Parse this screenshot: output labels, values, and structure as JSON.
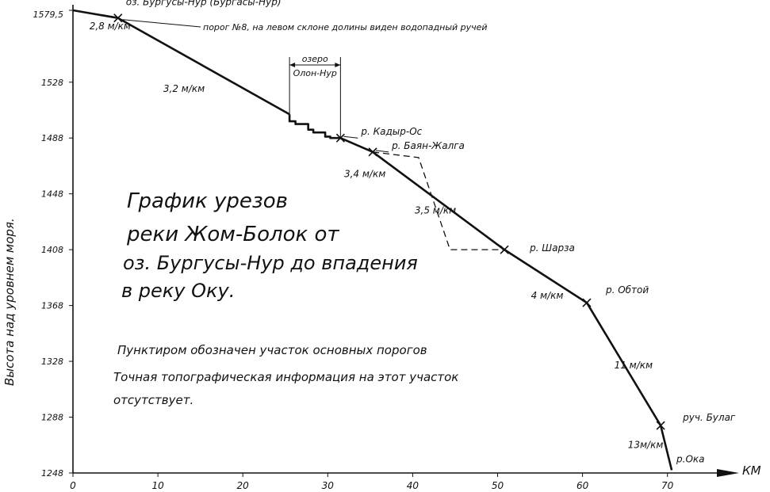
{
  "chart_data": {
    "type": "line",
    "title_lines": [
      "График урезов",
      "реки Жом-Болок от",
      "оз. Бургусы-Нур до впадения",
      "в реку Оку."
    ],
    "note_lines": [
      "Пунктиром обозначен участок основных порогов",
      "Точная топографическая информация на этот участок",
      "отсутствует."
    ],
    "xlabel": "КМ",
    "ylabel": "Высота над уровнем моря.",
    "xlim": [
      0,
      75
    ],
    "ylim": [
      1248,
      1579.5
    ],
    "x_ticks": [
      0,
      10,
      20,
      30,
      40,
      50,
      60,
      70
    ],
    "y_ticks": [
      {
        "value": 1579.5,
        "label": "1579,5"
      },
      {
        "value": 1528,
        "label": "1528"
      },
      {
        "value": 1488,
        "label": "1488"
      },
      {
        "value": 1448,
        "label": "1448"
      },
      {
        "value": 1408,
        "label": "1408"
      },
      {
        "value": 1368,
        "label": "1368"
      },
      {
        "value": 1328,
        "label": "1328"
      },
      {
        "value": 1288,
        "label": "1288"
      },
      {
        "value": 1248,
        "label": "1248"
      }
    ],
    "profile": [
      {
        "x": 0,
        "y": 1579.5
      },
      {
        "x": 5.3,
        "y": 1574
      },
      {
        "x": 25.5,
        "y": 1505
      },
      {
        "x": 31.5,
        "y": 1488
      },
      {
        "x": 35.3,
        "y": 1478
      },
      {
        "x": 50.8,
        "y": 1408
      },
      {
        "x": 60.5,
        "y": 1370
      },
      {
        "x": 69.2,
        "y": 1282
      },
      {
        "x": 70.5,
        "y": 1250
      }
    ],
    "lake_steps": [
      {
        "x": 25.5,
        "y": 1505
      },
      {
        "x": 26.2,
        "y": 1500
      },
      {
        "x": 27.7,
        "y": 1498
      },
      {
        "x": 28.3,
        "y": 1494
      },
      {
        "x": 29.7,
        "y": 1492
      },
      {
        "x": 30.3,
        "y": 1489
      },
      {
        "x": 31.5,
        "y": 1488
      }
    ],
    "dashed_section": [
      {
        "x": 35.3,
        "y": 1478
      },
      {
        "x": 40.7,
        "y": 1474
      },
      {
        "x": 44.4,
        "y": 1408
      },
      {
        "x": 50.8,
        "y": 1408
      }
    ],
    "tributaries": [
      {
        "x": 5.3,
        "y": 1574,
        "label": "оз. Бургусы-Нур (Бургасы-Нур)"
      },
      {
        "x": 31.5,
        "y": 1488,
        "label": "р. Кадыр-Ос"
      },
      {
        "x": 35.3,
        "y": 1478,
        "label": "р. Баян-Жалга"
      },
      {
        "x": 50.8,
        "y": 1408,
        "label": "р. Шарза"
      },
      {
        "x": 60.5,
        "y": 1370,
        "label": "р. Обтой"
      },
      {
        "x": 69.2,
        "y": 1282,
        "label": "руч. Булаг"
      },
      {
        "x": 70.5,
        "y": 1250,
        "label": "р.Ока"
      }
    ],
    "threshold_note": "порог №8, на левом склоне долины виден водопадный ручей",
    "lake_label_top": "озеро",
    "lake_label_bottom": "Олон-Нур",
    "slopes": [
      {
        "label": "2,8 м/км",
        "x": 3.8,
        "y": 1566
      },
      {
        "label": "3,2 м/км",
        "x": 12.5,
        "y": 1521
      },
      {
        "label": "3,4 м/км",
        "x": 33.8,
        "y": 1460
      },
      {
        "label": "3,5 м/км",
        "x": 42.1,
        "y": 1434
      },
      {
        "label": "4 м/км",
        "x": 55.8,
        "y": 1373
      },
      {
        "label": "11 м/км",
        "x": 65.6,
        "y": 1323
      },
      {
        "label": "13м/км",
        "x": 67.2,
        "y": 1266
      }
    ]
  }
}
